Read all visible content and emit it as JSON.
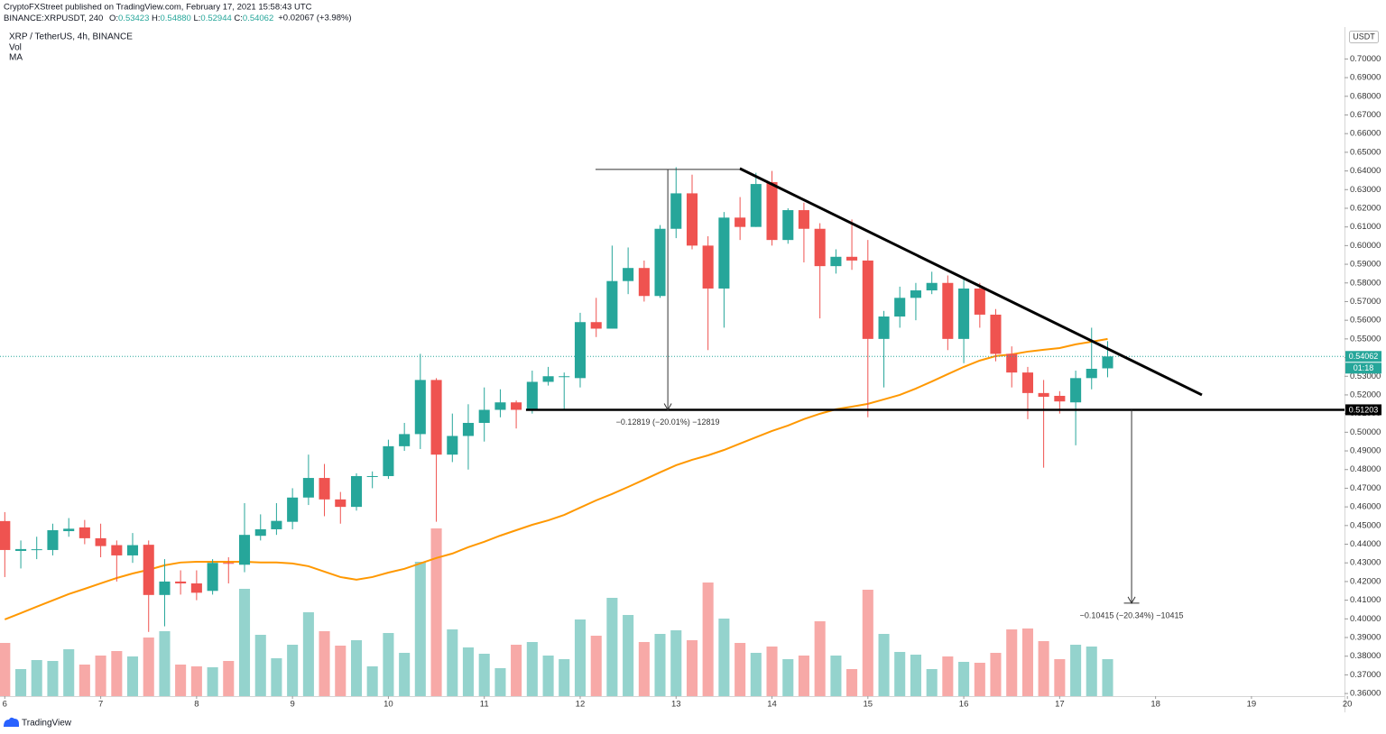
{
  "header": {
    "published": "CryptoFXStreet published on TradingView.com, February 17, 2021 15:58:43 UTC",
    "symbol": "BINANCE:XRPUSDT, 240",
    "ohlc": [
      {
        "label": "O:",
        "value": "0.53423"
      },
      {
        "label": "H:",
        "value": "0.54880"
      },
      {
        "label": "L:",
        "value": "0.52944"
      },
      {
        "label": "C:",
        "value": "0.54062"
      }
    ],
    "change": "+0.02067 (+3.98%)"
  },
  "footer": {
    "brand": "TradingView"
  },
  "chart_data": {
    "type": "candlestick",
    "title": "XRP / TetherUS, 4h, BINANCE",
    "legend": [
      "Vol",
      "MA"
    ],
    "axis_unit": "USDT",
    "countdown": "01:18",
    "up_color": "#26a69a",
    "down_color": "#ef5350",
    "volume_up_color": "#94d3cd",
    "volume_down_color": "#f7a9a7",
    "ma_color": "#ff9800",
    "drawing_color": "#000000",
    "grid": false,
    "xlim": [
      5.95,
      19.97
    ],
    "xticks": [
      6,
      7,
      8,
      9,
      10,
      11,
      12,
      13,
      14,
      15,
      16,
      17,
      18,
      19,
      20
    ],
    "ylim": [
      0.3586,
      0.7171
    ],
    "yticks": [
      {
        "value": 0.36,
        "label": "0.36000"
      },
      {
        "value": 0.37,
        "label": "0.37000"
      },
      {
        "value": 0.38,
        "label": "0.38000"
      },
      {
        "value": 0.39,
        "label": "0.39000"
      },
      {
        "value": 0.4,
        "label": "0.40000"
      },
      {
        "value": 0.41,
        "label": "0.41000"
      },
      {
        "value": 0.42,
        "label": "0.42000"
      },
      {
        "value": 0.43,
        "label": "0.43000"
      },
      {
        "value": 0.44,
        "label": "0.44000"
      },
      {
        "value": 0.45,
        "label": "0.45000"
      },
      {
        "value": 0.46,
        "label": "0.46000"
      },
      {
        "value": 0.47,
        "label": "0.47000"
      },
      {
        "value": 0.48,
        "label": "0.48000"
      },
      {
        "value": 0.49,
        "label": "0.49000"
      },
      {
        "value": 0.5,
        "label": "0.50000"
      },
      {
        "value": 0.51,
        "label": "0.51000"
      },
      {
        "value": 0.52,
        "label": "0.52000"
      },
      {
        "value": 0.53,
        "label": "0.53000"
      },
      {
        "value": 0.54,
        "label": "0.54000"
      },
      {
        "value": 0.55,
        "label": "0.55000"
      },
      {
        "value": 0.56,
        "label": "0.56000"
      },
      {
        "value": 0.57,
        "label": "0.57000"
      },
      {
        "value": 0.58,
        "label": "0.58000"
      },
      {
        "value": 0.59,
        "label": "0.59000"
      },
      {
        "value": 0.6,
        "label": "0.60000"
      },
      {
        "value": 0.61,
        "label": "0.61000"
      },
      {
        "value": 0.62,
        "label": "0.62000"
      },
      {
        "value": 0.63,
        "label": "0.63000"
      },
      {
        "value": 0.64,
        "label": "0.64000"
      },
      {
        "value": 0.65,
        "label": "0.65000"
      },
      {
        "value": 0.66,
        "label": "0.66000"
      },
      {
        "value": 0.67,
        "label": "0.67000"
      },
      {
        "value": 0.68,
        "label": "0.68000"
      },
      {
        "value": 0.69,
        "label": "0.69000"
      },
      {
        "value": 0.7,
        "label": "0.70000"
      }
    ],
    "volume_ylim": [
      0,
      200
    ],
    "x": [
      6,
      6.167,
      6.333,
      6.5,
      6.667,
      6.833,
      7,
      7.167,
      7.333,
      7.5,
      7.667,
      7.833,
      8,
      8.167,
      8.333,
      8.5,
      8.667,
      8.833,
      9,
      9.167,
      9.333,
      9.5,
      9.667,
      9.833,
      10,
      10.167,
      10.333,
      10.5,
      10.667,
      10.833,
      11,
      11.167,
      11.333,
      11.5,
      11.667,
      11.833,
      12,
      12.167,
      12.333,
      12.5,
      12.667,
      12.833,
      13,
      13.167,
      13.333,
      13.5,
      13.667,
      13.833,
      14,
      14.167,
      14.333,
      14.5,
      14.667,
      14.833,
      15,
      15.167,
      15.333,
      15.5,
      15.667,
      15.833,
      16,
      16.167,
      16.333,
      16.5,
      16.667,
      16.833,
      17,
      17.167,
      17.333,
      17.5
    ],
    "open": [
      0.4524,
      0.4364,
      0.437,
      0.4369,
      0.447,
      0.449,
      0.4432,
      0.4395,
      0.434,
      0.4397,
      0.4128,
      0.42,
      0.419,
      0.415,
      0.43,
      0.429,
      0.4445,
      0.448,
      0.452,
      0.465,
      0.4755,
      0.464,
      0.46,
      0.4765,
      0.4765,
      0.4925,
      0.499,
      0.528,
      0.488,
      0.498,
      0.505,
      0.512,
      0.516,
      0.512,
      0.527,
      0.53,
      0.529,
      0.559,
      0.5555,
      0.581,
      0.588,
      0.573,
      0.609,
      0.628,
      0.6,
      0.577,
      0.615,
      0.61,
      0.634,
      0.603,
      0.619,
      0.609,
      0.589,
      0.594,
      0.592,
      0.55,
      0.562,
      0.572,
      0.576,
      0.58,
      0.55,
      0.577,
      0.563,
      0.542,
      0.532,
      0.521,
      0.5195,
      0.516,
      0.529,
      0.53423
    ],
    "high": [
      0.4572,
      0.442,
      0.444,
      0.451,
      0.454,
      0.453,
      0.451,
      0.442,
      0.446,
      0.442,
      0.432,
      0.426,
      0.426,
      0.432,
      0.433,
      0.462,
      0.456,
      0.462,
      0.47,
      0.488,
      0.483,
      0.468,
      0.478,
      0.479,
      0.496,
      0.505,
      0.542,
      0.529,
      0.51,
      0.515,
      0.524,
      0.523,
      0.517,
      0.533,
      0.535,
      0.532,
      0.564,
      0.572,
      0.6,
      0.599,
      0.592,
      0.611,
      0.642,
      0.638,
      0.605,
      0.618,
      0.626,
      0.639,
      0.64,
      0.62,
      0.623,
      0.612,
      0.598,
      0.614,
      0.603,
      0.565,
      0.578,
      0.58,
      0.586,
      0.584,
      0.583,
      0.58,
      0.566,
      0.546,
      0.535,
      0.528,
      0.522,
      0.533,
      0.556,
      0.5488
    ],
    "low": [
      0.4224,
      0.427,
      0.432,
      0.434,
      0.444,
      0.44,
      0.433,
      0.42,
      0.43,
      0.393,
      0.396,
      0.413,
      0.41,
      0.413,
      0.419,
      0.425,
      0.442,
      0.445,
      0.448,
      0.461,
      0.455,
      0.451,
      0.458,
      0.47,
      0.475,
      0.49,
      0.491,
      0.452,
      0.484,
      0.48,
      0.495,
      0.508,
      0.502,
      0.51,
      0.525,
      0.512,
      0.524,
      0.551,
      0.5555,
      0.574,
      0.57,
      0.572,
      0.604,
      0.598,
      0.544,
      0.556,
      0.603,
      0.61,
      0.6,
      0.601,
      0.591,
      0.561,
      0.585,
      0.587,
      0.508,
      0.524,
      0.556,
      0.56,
      0.574,
      0.544,
      0.537,
      0.556,
      0.538,
      0.524,
      0.507,
      0.481,
      0.51,
      0.493,
      0.523,
      0.52944
    ],
    "close": [
      0.4369,
      0.4374,
      0.4373,
      0.4475,
      0.4483,
      0.4432,
      0.439,
      0.434,
      0.4395,
      0.4128,
      0.42,
      0.419,
      0.414,
      0.43,
      0.4295,
      0.445,
      0.448,
      0.4525,
      0.465,
      0.4755,
      0.464,
      0.46,
      0.4765,
      0.4765,
      0.4925,
      0.499,
      0.528,
      0.488,
      0.498,
      0.505,
      0.512,
      0.516,
      0.512,
      0.527,
      0.53,
      0.53,
      0.559,
      0.5555,
      0.581,
      0.588,
      0.573,
      0.609,
      0.628,
      0.6,
      0.577,
      0.615,
      0.61,
      0.633,
      0.603,
      0.619,
      0.609,
      0.589,
      0.594,
      0.592,
      0.55,
      0.562,
      0.572,
      0.576,
      0.58,
      0.55,
      0.577,
      0.563,
      0.542,
      0.532,
      0.521,
      0.519,
      0.5165,
      0.529,
      0.534,
      0.54062
    ],
    "volume": [
      59,
      30,
      40,
      39,
      52,
      35,
      45,
      50,
      44,
      65,
      72,
      35,
      33,
      32,
      39,
      119,
      68,
      42,
      57,
      93,
      72,
      56,
      62,
      33,
      70,
      48,
      149,
      186,
      74,
      54,
      47,
      31,
      57,
      60,
      45,
      41,
      85,
      67,
      109,
      90,
      60,
      69,
      73,
      62,
      126,
      86,
      59,
      48,
      55,
      41,
      45,
      83,
      45,
      30,
      118,
      69,
      49,
      46,
      30,
      44,
      38,
      37,
      48,
      74,
      75,
      61,
      41,
      57,
      55,
      41
    ],
    "ma": [
      0.3997,
      0.4031,
      0.4065,
      0.4099,
      0.4133,
      0.4161,
      0.419,
      0.4219,
      0.4243,
      0.4263,
      0.4287,
      0.4302,
      0.4306,
      0.4306,
      0.4306,
      0.4306,
      0.4302,
      0.4302,
      0.4297,
      0.4282,
      0.4253,
      0.4224,
      0.421,
      0.4224,
      0.4248,
      0.4268,
      0.4297,
      0.4326,
      0.435,
      0.4384,
      0.4413,
      0.4446,
      0.4475,
      0.4504,
      0.4528,
      0.4557,
      0.4596,
      0.4635,
      0.4669,
      0.4707,
      0.4746,
      0.4785,
      0.4823,
      0.4852,
      0.4876,
      0.4905,
      0.4939,
      0.4973,
      0.5007,
      0.5036,
      0.507,
      0.5099,
      0.5123,
      0.5137,
      0.5152,
      0.5176,
      0.52,
      0.5234,
      0.5272,
      0.5311,
      0.535,
      0.5384,
      0.5408,
      0.5417,
      0.5432,
      0.5442,
      0.5451,
      0.5471,
      0.5485,
      0.55
    ],
    "support": {
      "price": 0.51203,
      "x_start": 11.435
    },
    "trendline": {
      "x": [
        13.665,
        18.483
      ],
      "y": [
        0.6413,
        0.52
      ]
    },
    "measures": [
      {
        "x": 12.914,
        "y": [
          0.6408,
          0.51203
        ],
        "bar_x": [
          12.16,
          13.665
        ],
        "bar_at": "start",
        "label": "−0.12819 (−20.01%) −12819"
      },
      {
        "x": 17.75,
        "y": [
          0.51203,
          0.4084
        ],
        "bar_x": [
          17.67,
          17.83
        ],
        "bar_at": "end",
        "label": "−0.10415 (−20.34%) −10415"
      }
    ]
  }
}
